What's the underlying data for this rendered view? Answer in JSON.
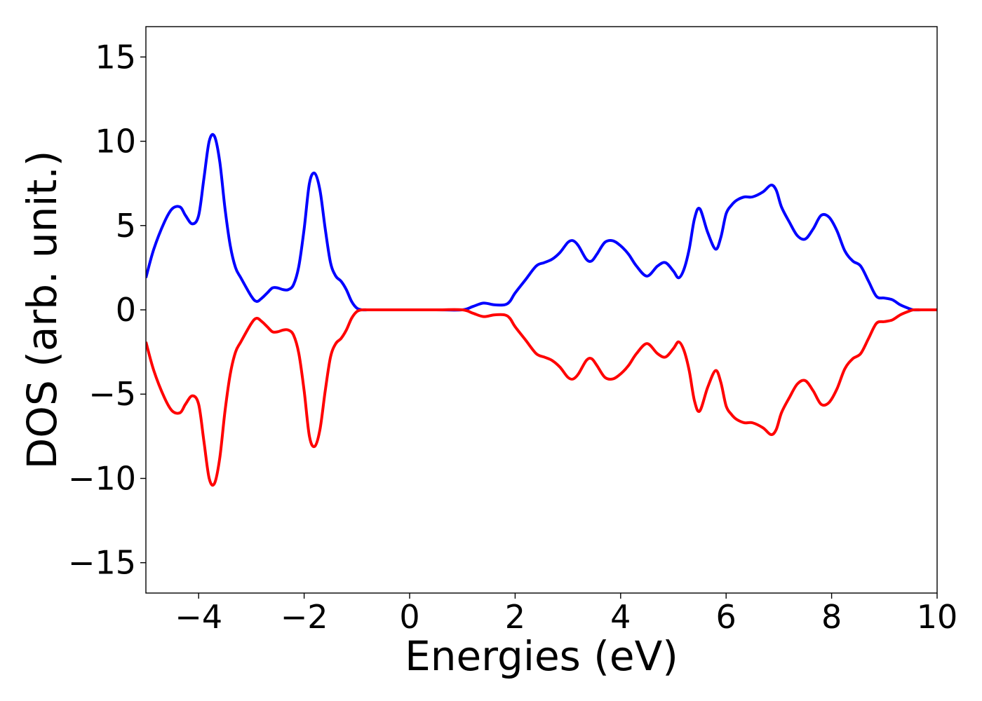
{
  "chart_data": {
    "type": "line",
    "title": "",
    "xlabel": "Energies (eV)",
    "ylabel": "DOS (arb. unit.)",
    "xlim": [
      -5,
      10
    ],
    "ylim": [
      -16.8,
      16.8
    ],
    "grid": false,
    "legend": "none",
    "x_ticks": [
      -4,
      -2,
      0,
      2,
      4,
      6,
      8,
      10
    ],
    "x_tick_labels": [
      "−4",
      "−2",
      "0",
      "2",
      "4",
      "6",
      "8",
      "10"
    ],
    "y_ticks": [
      15,
      10,
      5,
      0,
      -5,
      -10,
      -15
    ],
    "y_tick_labels": [
      "15",
      "10",
      "5",
      "0",
      "−5",
      "−10",
      "−15"
    ],
    "series": [
      {
        "color": "#0000ff",
        "x": [
          -5.0,
          -4.85,
          -4.65,
          -4.5,
          -4.35,
          -4.25,
          -4.12,
          -4.0,
          -3.9,
          -3.8,
          -3.7,
          -3.6,
          -3.5,
          -3.4,
          -3.3,
          -3.2,
          -3.0,
          -2.9,
          -2.8,
          -2.7,
          -2.6,
          -2.5,
          -2.4,
          -2.3,
          -2.2,
          -2.1,
          -2.0,
          -1.9,
          -1.8,
          -1.7,
          -1.6,
          -1.5,
          -1.4,
          -1.3,
          -1.2,
          -1.1,
          -1.0,
          -0.9,
          -0.8,
          -0.7,
          -0.6,
          -0.5,
          0.0,
          0.5,
          1.0,
          1.2,
          1.4,
          1.6,
          1.8,
          1.9,
          2.0,
          2.2,
          2.4,
          2.55,
          2.7,
          2.85,
          3.0,
          3.1,
          3.2,
          3.35,
          3.45,
          3.55,
          3.7,
          3.85,
          4.0,
          4.15,
          4.3,
          4.5,
          4.7,
          4.85,
          5.0,
          5.1,
          5.2,
          5.3,
          5.4,
          5.5,
          5.65,
          5.8,
          5.9,
          6.0,
          6.1,
          6.2,
          6.35,
          6.5,
          6.7,
          6.85,
          6.95,
          7.05,
          7.2,
          7.35,
          7.5,
          7.65,
          7.8,
          7.95,
          8.1,
          8.25,
          8.4,
          8.55,
          8.7,
          8.85,
          9.0,
          9.15,
          9.3,
          9.45,
          9.55,
          9.7,
          9.85,
          10.0
        ],
        "values": [
          1.9,
          3.6,
          5.2,
          6.0,
          6.1,
          5.6,
          5.1,
          5.6,
          7.8,
          10.0,
          10.3,
          8.8,
          6.0,
          3.8,
          2.5,
          1.9,
          0.8,
          0.5,
          0.7,
          1.0,
          1.3,
          1.3,
          1.2,
          1.2,
          1.5,
          2.6,
          4.8,
          7.5,
          8.1,
          7.1,
          4.8,
          2.8,
          2.0,
          1.7,
          1.2,
          0.5,
          0.1,
          0.0,
          0.0,
          0.0,
          0.0,
          0.0,
          0.0,
          0.0,
          0.0,
          0.2,
          0.4,
          0.3,
          0.3,
          0.5,
          1.0,
          1.8,
          2.6,
          2.8,
          3.0,
          3.4,
          4.0,
          4.1,
          3.8,
          3.0,
          2.9,
          3.3,
          4.0,
          4.1,
          3.8,
          3.3,
          2.6,
          2.0,
          2.6,
          2.8,
          2.3,
          1.9,
          2.4,
          3.6,
          5.4,
          6.0,
          4.6,
          3.6,
          4.3,
          5.7,
          6.2,
          6.5,
          6.7,
          6.7,
          7.0,
          7.4,
          7.1,
          6.1,
          5.2,
          4.4,
          4.2,
          4.8,
          5.6,
          5.5,
          4.7,
          3.5,
          2.9,
          2.6,
          1.7,
          0.8,
          0.7,
          0.6,
          0.3,
          0.1,
          0.0,
          0.0,
          0.0,
          0.0
        ]
      },
      {
        "color": "#ff0000",
        "x": [
          -5.0,
          -4.85,
          -4.65,
          -4.5,
          -4.35,
          -4.25,
          -4.12,
          -4.0,
          -3.9,
          -3.8,
          -3.7,
          -3.6,
          -3.5,
          -3.4,
          -3.3,
          -3.2,
          -3.0,
          -2.9,
          -2.8,
          -2.7,
          -2.6,
          -2.5,
          -2.4,
          -2.3,
          -2.2,
          -2.1,
          -2.0,
          -1.9,
          -1.8,
          -1.7,
          -1.6,
          -1.5,
          -1.4,
          -1.3,
          -1.2,
          -1.1,
          -1.0,
          -0.9,
          -0.8,
          -0.7,
          -0.6,
          -0.5,
          0.0,
          0.5,
          1.0,
          1.2,
          1.4,
          1.6,
          1.8,
          1.9,
          2.0,
          2.2,
          2.4,
          2.55,
          2.7,
          2.85,
          3.0,
          3.1,
          3.2,
          3.35,
          3.45,
          3.55,
          3.7,
          3.85,
          4.0,
          4.15,
          4.3,
          4.5,
          4.7,
          4.85,
          5.0,
          5.1,
          5.2,
          5.3,
          5.4,
          5.5,
          5.65,
          5.8,
          5.9,
          6.0,
          6.1,
          6.2,
          6.35,
          6.5,
          6.7,
          6.85,
          6.95,
          7.05,
          7.2,
          7.35,
          7.5,
          7.65,
          7.8,
          7.95,
          8.1,
          8.25,
          8.4,
          8.55,
          8.7,
          8.85,
          9.0,
          9.15,
          9.3,
          9.45,
          9.55,
          9.7,
          9.85,
          10.0
        ],
        "values": [
          -1.9,
          -3.6,
          -5.2,
          -6.0,
          -6.1,
          -5.6,
          -5.1,
          -5.6,
          -7.8,
          -10.0,
          -10.3,
          -8.8,
          -6.0,
          -3.8,
          -2.5,
          -1.9,
          -0.8,
          -0.5,
          -0.7,
          -1.0,
          -1.3,
          -1.3,
          -1.2,
          -1.2,
          -1.5,
          -2.6,
          -4.8,
          -7.5,
          -8.1,
          -7.1,
          -4.8,
          -2.8,
          -2.0,
          -1.7,
          -1.2,
          -0.5,
          -0.1,
          0.0,
          0.0,
          0.0,
          0.0,
          0.0,
          0.0,
          0.0,
          0.0,
          -0.2,
          -0.4,
          -0.3,
          -0.3,
          -0.5,
          -1.0,
          -1.8,
          -2.6,
          -2.8,
          -3.0,
          -3.4,
          -4.0,
          -4.1,
          -3.8,
          -3.0,
          -2.9,
          -3.3,
          -4.0,
          -4.1,
          -3.8,
          -3.3,
          -2.6,
          -2.0,
          -2.6,
          -2.8,
          -2.3,
          -1.9,
          -2.4,
          -3.6,
          -5.4,
          -6.0,
          -4.6,
          -3.6,
          -4.3,
          -5.7,
          -6.2,
          -6.5,
          -6.7,
          -6.7,
          -7.0,
          -7.4,
          -7.1,
          -6.1,
          -5.2,
          -4.4,
          -4.2,
          -4.8,
          -5.6,
          -5.5,
          -4.7,
          -3.5,
          -2.9,
          -2.6,
          -1.7,
          -0.8,
          -0.7,
          -0.6,
          -0.3,
          -0.1,
          0.0,
          0.0,
          0.0,
          0.0
        ]
      }
    ]
  }
}
